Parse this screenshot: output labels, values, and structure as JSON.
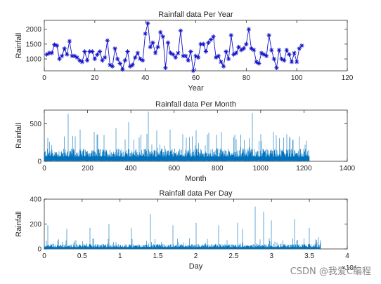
{
  "watermark": "CSDN @我爱C编程",
  "colors": {
    "year_line": "#1010c8",
    "month_line": "#0072bd",
    "day_line": "#0072bd",
    "axis": "#262626"
  },
  "chart_data": [
    {
      "type": "line",
      "title": "Rainfall data Per Year",
      "xlabel": "Year",
      "ylabel": "Rainfall",
      "xlim": [
        0,
        120
      ],
      "ylim": [
        600,
        2300
      ],
      "xticks": [
        "0",
        "20",
        "40",
        "60",
        "80",
        "100",
        "120"
      ],
      "yticks": [
        "1000",
        "1500",
        "2000"
      ],
      "grid": false,
      "marker": "asterisk",
      "series": [
        {
          "x": [
            1,
            2,
            3,
            4,
            5,
            6,
            7,
            8,
            9,
            10,
            11,
            12,
            13,
            14,
            15,
            16,
            17,
            18,
            19,
            20,
            21,
            22,
            23,
            24,
            25,
            26,
            27,
            28,
            29,
            30,
            31,
            32,
            33,
            34,
            35,
            36,
            37,
            38,
            39,
            40,
            41,
            42,
            43,
            44,
            45,
            46,
            47,
            48,
            49,
            50,
            51,
            52,
            53,
            54,
            55,
            56,
            57,
            58,
            59,
            60,
            61,
            62,
            63,
            64,
            65,
            66,
            67,
            68,
            69,
            70,
            71,
            72,
            73,
            74,
            75,
            76,
            77,
            78,
            79,
            80,
            81,
            82,
            83,
            84,
            85,
            86,
            87,
            88,
            89,
            90,
            91,
            92,
            93,
            94,
            95,
            96,
            97,
            98,
            99,
            100,
            101,
            102
          ],
          "y": [
            1150,
            1200,
            1200,
            1480,
            1450,
            1000,
            1100,
            1350,
            1150,
            1600,
            1100,
            1100,
            1050,
            950,
            900,
            1250,
            950,
            1250,
            1250,
            1000,
            1150,
            1250,
            950,
            1050,
            1620,
            800,
            750,
            1350,
            1000,
            850,
            650,
            950,
            1250,
            750,
            800,
            1050,
            1200,
            1000,
            950,
            1850,
            2200,
            1400,
            1550,
            1200,
            1400,
            1900,
            1750,
            700,
            1550,
            1200,
            1150,
            1050,
            1200,
            1950,
            1100,
            1100,
            950,
            1250,
            600,
            1100,
            1050,
            1500,
            1500,
            1250,
            1550,
            1650,
            1750,
            1050,
            1100,
            900,
            750,
            1250,
            1000,
            1800,
            1150,
            1200,
            1400,
            1300,
            1350,
            1500,
            2000,
            1350,
            1300,
            900,
            850,
            1200,
            1150,
            1100,
            1800,
            1300,
            1000,
            700,
            1300,
            1000,
            950,
            1300,
            1150,
            900,
            1200,
            900,
            1350,
            1450
          ]
        }
      ]
    },
    {
      "type": "line",
      "title": "Rainfall data Per Month",
      "xlabel": "Month",
      "ylabel": "Rainfall",
      "xlim": [
        0,
        1400
      ],
      "ylim": [
        0,
        680
      ],
      "xticks": [
        "0",
        "200",
        "400",
        "600",
        "800",
        "1000",
        "1200",
        "1400"
      ],
      "yticks": [
        "0",
        "500"
      ],
      "grid": false,
      "n_points": 1224,
      "baseline_range": [
        0,
        170
      ],
      "spikes": [
        [
          15,
          310
        ],
        [
          110,
          630
        ],
        [
          165,
          420
        ],
        [
          230,
          390
        ],
        [
          330,
          440
        ],
        [
          390,
          520
        ],
        [
          480,
          660
        ],
        [
          520,
          410
        ],
        [
          580,
          420
        ],
        [
          640,
          360
        ],
        [
          700,
          410
        ],
        [
          760,
          380
        ],
        [
          820,
          390
        ],
        [
          880,
          350
        ],
        [
          960,
          640
        ],
        [
          1000,
          360
        ],
        [
          1060,
          390
        ],
        [
          1120,
          360
        ],
        [
          1180,
          330
        ],
        [
          1220,
          150
        ]
      ]
    },
    {
      "type": "line",
      "title": "Rainfall data Per Day",
      "xlabel": "Day",
      "ylabel": "Rainfall",
      "xlim": [
        0,
        4
      ],
      "ylim": [
        0,
        400
      ],
      "x_multiplier": "10⁴",
      "xticks": [
        "0",
        "0.5",
        "1",
        "1.5",
        "2",
        "2.5",
        "3",
        "3.5",
        "4"
      ],
      "yticks": [
        "0",
        "200",
        "400"
      ],
      "grid": false,
      "n_points": 36500,
      "baseline_range": [
        0,
        40
      ],
      "spikes": [
        [
          0.05,
          190
        ],
        [
          0.3,
          160
        ],
        [
          0.6,
          170
        ],
        [
          0.85,
          200
        ],
        [
          1.15,
          170
        ],
        [
          1.4,
          280
        ],
        [
          1.7,
          190
        ],
        [
          2.0,
          210
        ],
        [
          2.3,
          190
        ],
        [
          2.55,
          210
        ],
        [
          2.62,
          160
        ],
        [
          2.78,
          340
        ],
        [
          2.9,
          300
        ],
        [
          3.0,
          230
        ],
        [
          3.3,
          240
        ],
        [
          3.5,
          170
        ],
        [
          3.62,
          95
        ]
      ]
    }
  ]
}
